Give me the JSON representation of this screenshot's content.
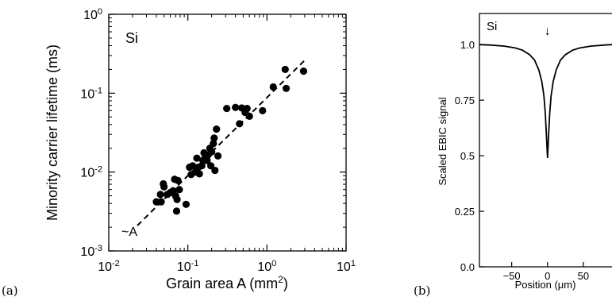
{
  "panel_labels": {
    "a": "(a)",
    "b": "(b)"
  },
  "chart_data": [
    {
      "type": "scatter",
      "panel": "(a)",
      "annotation": "Si",
      "xlabel": "Grain area A (mm",
      "xlabel_sup": "2",
      "xlabel_end": ")",
      "ylabel": "Minority carrier lifetime (ms)",
      "xscale": "log",
      "yscale": "log",
      "xlim": [
        0.01,
        10
      ],
      "ylim": [
        0.001,
        1
      ],
      "xticks": [
        {
          "value": 0.01,
          "base": "10",
          "exp": "-2"
        },
        {
          "value": 0.1,
          "base": "10",
          "exp": "-1"
        },
        {
          "value": 1,
          "base": "10",
          "exp": "0"
        },
        {
          "value": 10,
          "base": "10",
          "exp": "1"
        }
      ],
      "yticks": [
        {
          "value": 0.001,
          "base": "10",
          "exp": "-3"
        },
        {
          "value": 0.01,
          "base": "10",
          "exp": "-2"
        },
        {
          "value": 0.1,
          "base": "10",
          "exp": "-1"
        },
        {
          "value": 1,
          "base": "10",
          "exp": "0"
        }
      ],
      "fit_line": {
        "label": "~A",
        "x": [
          0.023,
          3.1
        ],
        "y": [
          0.0021,
          0.27
        ]
      },
      "points": [
        [
          0.04,
          0.0042
        ],
        [
          0.045,
          0.0052
        ],
        [
          0.046,
          0.0042
        ],
        [
          0.049,
          0.0071
        ],
        [
          0.05,
          0.0065
        ],
        [
          0.055,
          0.0052
        ],
        [
          0.06,
          0.0055
        ],
        [
          0.065,
          0.0058
        ],
        [
          0.068,
          0.0081
        ],
        [
          0.07,
          0.005
        ],
        [
          0.072,
          0.0032
        ],
        [
          0.073,
          0.0045
        ],
        [
          0.075,
          0.0078
        ],
        [
          0.078,
          0.006
        ],
        [
          0.095,
          0.0039
        ],
        [
          0.105,
          0.0115
        ],
        [
          0.11,
          0.0093
        ],
        [
          0.115,
          0.012
        ],
        [
          0.125,
          0.01
        ],
        [
          0.13,
          0.015
        ],
        [
          0.135,
          0.0115
        ],
        [
          0.14,
          0.0095
        ],
        [
          0.15,
          0.012
        ],
        [
          0.155,
          0.014
        ],
        [
          0.16,
          0.0175
        ],
        [
          0.165,
          0.015
        ],
        [
          0.175,
          0.014
        ],
        [
          0.18,
          0.0165
        ],
        [
          0.19,
          0.02
        ],
        [
          0.195,
          0.012
        ],
        [
          0.2,
          0.018
        ],
        [
          0.21,
          0.023
        ],
        [
          0.215,
          0.027
        ],
        [
          0.22,
          0.0105
        ],
        [
          0.23,
          0.035
        ],
        [
          0.24,
          0.016
        ],
        [
          0.31,
          0.064
        ],
        [
          0.4,
          0.066
        ],
        [
          0.45,
          0.041
        ],
        [
          0.48,
          0.065
        ],
        [
          0.53,
          0.057
        ],
        [
          0.56,
          0.064
        ],
        [
          0.6,
          0.051
        ],
        [
          0.88,
          0.06
        ],
        [
          1.2,
          0.12
        ],
        [
          1.7,
          0.2
        ],
        [
          1.75,
          0.115
        ],
        [
          2.9,
          0.19
        ]
      ]
    },
    {
      "type": "line",
      "panel": "(b)",
      "annotation": "Si",
      "marker": "↓",
      "xlabel": "Position (μm)",
      "ylabel": "Scaled EBIC signal",
      "xlim": [
        -95,
        90
      ],
      "ylim": [
        0,
        1.14
      ],
      "xticks": [
        -50,
        0,
        50
      ],
      "xtick_labels": [
        "−50",
        "0",
        "50"
      ],
      "yticks": [
        0,
        0.25,
        0.5,
        0.75,
        1.0
      ],
      "ytick_labels": [
        "0.0",
        "0.25",
        "0.5",
        "0.75",
        "1.0"
      ],
      "x": [
        -95,
        -80,
        -60,
        -45,
        -35,
        -25,
        -18,
        -12,
        -8,
        -5,
        -3,
        -1.5,
        0,
        1.5,
        3,
        5,
        8,
        12,
        18,
        25,
        35,
        45,
        60,
        80,
        90
      ],
      "y": [
        1.0,
        0.998,
        0.993,
        0.985,
        0.975,
        0.955,
        0.93,
        0.885,
        0.835,
        0.77,
        0.69,
        0.59,
        0.49,
        0.59,
        0.69,
        0.77,
        0.835,
        0.885,
        0.93,
        0.955,
        0.975,
        0.985,
        0.993,
        0.998,
        1.0
      ]
    }
  ]
}
